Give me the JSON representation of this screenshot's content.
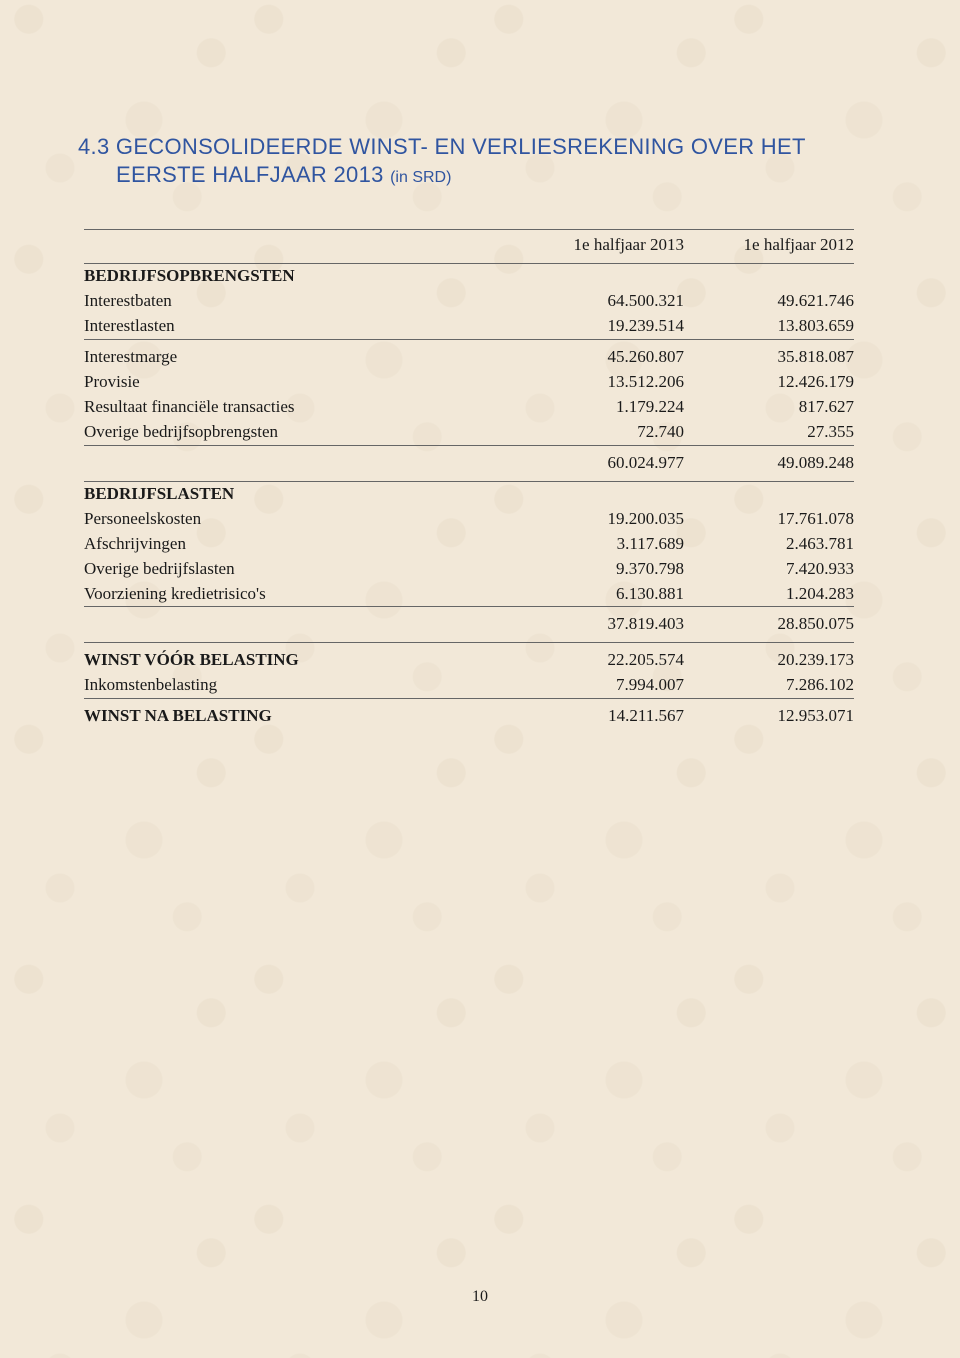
{
  "heading": {
    "section_num": "4.3",
    "line1_rest": "GECONSOLIDEERDE WINST- EN VERLIESREKENING OVER HET",
    "line2": "EERSTE HALFJAAR 2013",
    "parenthetical": "(in SRD)"
  },
  "columns": {
    "col1": "1e halfjaar 2013",
    "col2": "1e halfjaar 2012"
  },
  "sections": {
    "bedrijfsopbrengsten": {
      "label": "BEDRIJFSOPBRENGSTEN",
      "rows": [
        {
          "label": "Interestbaten",
          "v1": "64.500.321",
          "v2": "49.621.746"
        },
        {
          "label": "Interestlasten",
          "v1": "19.239.514",
          "v2": "13.803.659"
        }
      ],
      "sub1": [
        {
          "label": "Interestmarge",
          "v1": "45.260.807",
          "v2": "35.818.087"
        },
        {
          "label": "Provisie",
          "v1": "13.512.206",
          "v2": "12.426.179"
        },
        {
          "label": "Resultaat financiële transacties",
          "v1": "1.179.224",
          "v2": "817.627"
        },
        {
          "label": "Overige bedrijfsopbrengsten",
          "v1": "72.740",
          "v2": "27.355"
        }
      ],
      "subtotal": {
        "v1": "60.024.977",
        "v2": "49.089.248"
      }
    },
    "bedrijfslasten": {
      "label": "BEDRIJFSLASTEN",
      "rows": [
        {
          "label": "Personeelskosten",
          "v1": "19.200.035",
          "v2": "17.761.078"
        },
        {
          "label": "Afschrijvingen",
          "v1": "3.117.689",
          "v2": "2.463.781"
        },
        {
          "label": "Overige bedrijfslasten",
          "v1": "9.370.798",
          "v2": "7.420.933"
        },
        {
          "label": "Voorziening kredietrisico's",
          "v1": "6.130.881",
          "v2": "1.204.283"
        }
      ],
      "subtotal": {
        "v1": "37.819.403",
        "v2": "28.850.075"
      }
    },
    "winst_voor": {
      "label": "WINST VÓÓR BELASTING",
      "v1": "22.205.574",
      "v2": "20.239.173"
    },
    "inkomstenbelasting": {
      "label": "Inkomstenbelasting",
      "v1": "7.994.007",
      "v2": "7.286.102"
    },
    "winst_na": {
      "label": "WINST NA BELASTING",
      "v1": "14.211.567",
      "v2": "12.953.071"
    }
  },
  "page_number": "10",
  "colors": {
    "heading": "#3055a0",
    "text": "#1a1a1a",
    "rule": "#666666",
    "background": "#f2e8d8"
  },
  "typography": {
    "heading_fontsize_pt": 16,
    "body_fontsize_pt": 12
  }
}
